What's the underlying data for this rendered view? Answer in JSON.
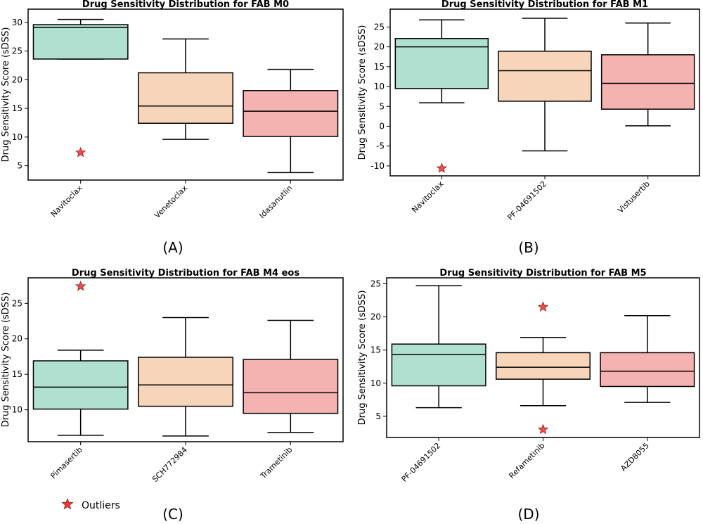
{
  "colors": {
    "box": [
      "#b0e0cf",
      "#f6d5bb",
      "#f4b3b1"
    ],
    "star": "#e83a3a",
    "axis": "#000000"
  },
  "legend": {
    "label": "Outliers",
    "icon": "star-icon"
  },
  "chart_data": [
    {
      "type": "box",
      "panel": "(A)",
      "title": "Drug Sensitivity Distribution for FAB M0",
      "ylabel": "Drug Sensitivity Score (sDSS)",
      "ylim": [
        2.5,
        32.3
      ],
      "yticks": [
        5,
        10,
        15,
        20,
        25,
        30
      ],
      "categories": [
        "Navitoclax",
        "Venetoclax",
        "Idasanutlin"
      ],
      "boxes": [
        {
          "whisker_low": 23.6,
          "q1": 23.6,
          "median": 29.1,
          "q3": 29.6,
          "whisker_high": 30.5,
          "outliers": [
            7.3
          ]
        },
        {
          "whisker_low": 9.6,
          "q1": 12.4,
          "median": 15.4,
          "q3": 21.2,
          "whisker_high": 27.1,
          "outliers": []
        },
        {
          "whisker_low": 3.8,
          "q1": 10.1,
          "median": 14.5,
          "q3": 18.1,
          "whisker_high": 21.8,
          "outliers": []
        }
      ]
    },
    {
      "type": "box",
      "panel": "(B)",
      "title": "Drug Sensitivity Distribution for FAB M1",
      "ylabel": "Drug Sensitivity Score (sDSS)",
      "ylim": [
        -12.5,
        29.5
      ],
      "yticks": [
        -10,
        -5,
        0,
        5,
        10,
        15,
        20,
        25
      ],
      "categories": [
        "Navitoclax",
        "PF-04691502",
        "Vistusertib"
      ],
      "boxes": [
        {
          "whisker_low": 5.9,
          "q1": 9.5,
          "median": 20.0,
          "q3": 22.1,
          "whisker_high": 26.8,
          "outliers": [
            -10.6
          ]
        },
        {
          "whisker_low": -6.2,
          "q1": 6.3,
          "median": 14.0,
          "q3": 18.9,
          "whisker_high": 27.2,
          "outliers": []
        },
        {
          "whisker_low": 0.1,
          "q1": 4.3,
          "median": 10.8,
          "q3": 18.0,
          "whisker_high": 26.0,
          "outliers": []
        }
      ]
    },
    {
      "type": "box",
      "panel": "(C)",
      "title": "Drug Sensitivity Distribution for FAB M4 eos",
      "ylabel": "Drug Sensitivity Score (sDSS)",
      "ylim": [
        5.5,
        28.6
      ],
      "yticks": [
        10,
        15,
        20,
        25
      ],
      "categories": [
        "Pimasertib",
        "SCH772984",
        "Trametinib"
      ],
      "boxes": [
        {
          "whisker_low": 6.4,
          "q1": 10.1,
          "median": 13.2,
          "q3": 16.9,
          "whisker_high": 18.4,
          "outliers": [
            27.4
          ]
        },
        {
          "whisker_low": 6.3,
          "q1": 10.5,
          "median": 13.5,
          "q3": 17.4,
          "whisker_high": 23.0,
          "outliers": []
        },
        {
          "whisker_low": 6.8,
          "q1": 9.5,
          "median": 12.4,
          "q3": 17.1,
          "whisker_high": 22.6,
          "outliers": []
        }
      ]
    },
    {
      "type": "box",
      "panel": "(D)",
      "title": "Drug Sensitivity Distribution for FAB M5",
      "ylabel": "Drug Sensitivity Score (sDSS)",
      "ylim": [
        1.8,
        25.9
      ],
      "yticks": [
        5,
        10,
        15,
        20,
        25
      ],
      "categories": [
        "PF-04691502",
        "Refametinib",
        "AZD8055"
      ],
      "boxes": [
        {
          "whisker_low": 6.3,
          "q1": 9.6,
          "median": 14.3,
          "q3": 15.9,
          "whisker_high": 24.7,
          "outliers": []
        },
        {
          "whisker_low": 6.6,
          "q1": 10.6,
          "median": 12.4,
          "q3": 14.6,
          "whisker_high": 16.9,
          "outliers": [
            21.5,
            3.0
          ]
        },
        {
          "whisker_low": 7.1,
          "q1": 9.5,
          "median": 11.8,
          "q3": 14.6,
          "whisker_high": 20.2,
          "outliers": []
        }
      ]
    }
  ]
}
